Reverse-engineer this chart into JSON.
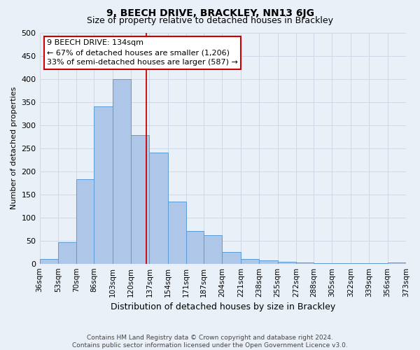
{
  "title": "9, BEECH DRIVE, BRACKLEY, NN13 6JG",
  "subtitle": "Size of property relative to detached houses in Brackley",
  "xlabel": "Distribution of detached houses by size in Brackley",
  "ylabel": "Number of detached properties",
  "footnote1": "Contains HM Land Registry data © Crown copyright and database right 2024.",
  "footnote2": "Contains public sector information licensed under the Open Government Licence v3.0.",
  "bar_edges": [
    36,
    53,
    70,
    86,
    103,
    120,
    137,
    154,
    171,
    187,
    204,
    221,
    238,
    255,
    272,
    288,
    305,
    322,
    339,
    356,
    373
  ],
  "bar_heights": [
    10,
    47,
    183,
    340,
    400,
    278,
    240,
    135,
    70,
    61,
    25,
    10,
    7,
    4,
    2,
    1,
    1,
    1,
    1,
    2
  ],
  "bar_color": "#aec6e8",
  "bar_edge_color": "#5b9bd5",
  "grid_color": "#d0d8e8",
  "background_color": "#eaf0f8",
  "vline_x": 134,
  "vline_color": "#cc0000",
  "annotation_line1": "9 BEECH DRIVE: 134sqm",
  "annotation_line2": "← 67% of detached houses are smaller (1,206)",
  "annotation_line3": "33% of semi-detached houses are larger (587) →",
  "annotation_box_color": "#ffffff",
  "annotation_box_edge": "#cc0000",
  "ylim": [
    0,
    500
  ],
  "yticks": [
    0,
    50,
    100,
    150,
    200,
    250,
    300,
    350,
    400,
    450,
    500
  ],
  "xlim_left": 36,
  "xlim_right": 373,
  "tick_labels": [
    "36sqm",
    "53sqm",
    "70sqm",
    "86sqm",
    "103sqm",
    "120sqm",
    "137sqm",
    "154sqm",
    "171sqm",
    "187sqm",
    "204sqm",
    "221sqm",
    "238sqm",
    "255sqm",
    "272sqm",
    "288sqm",
    "305sqm",
    "322sqm",
    "339sqm",
    "356sqm",
    "373sqm"
  ],
  "title_fontsize": 10,
  "subtitle_fontsize": 9,
  "xlabel_fontsize": 9,
  "ylabel_fontsize": 8,
  "ytick_fontsize": 8,
  "xtick_fontsize": 7.5,
  "footnote_fontsize": 6.5,
  "annotation_fontsize": 8
}
